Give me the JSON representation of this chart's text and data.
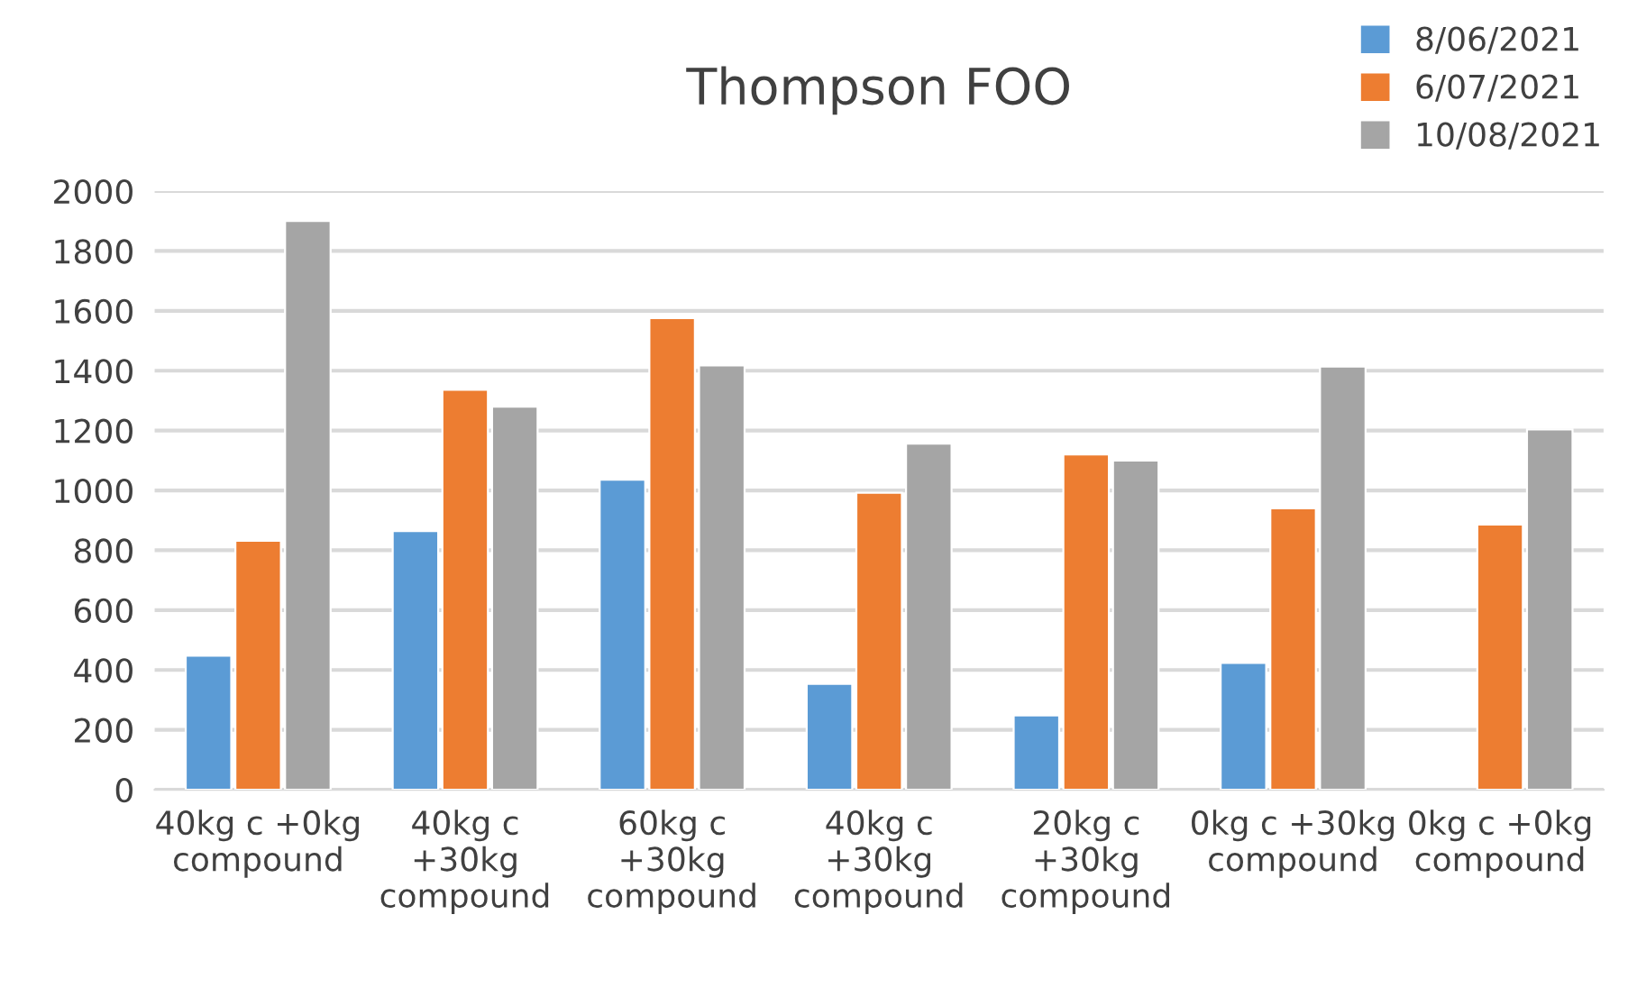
{
  "chart_data": {
    "type": "bar",
    "title": "Thompson FOO",
    "categories": [
      "40kg c +0kg\ncompound",
      "40kg c\n+30kg\ncompound",
      "60kg c\n+30kg\ncompound",
      "40kg c\n+30kg\ncompound",
      "20kg c\n+30kg\ncompound",
      "0kg c +30kg\ncompound",
      "0kg c +0kg\ncompound"
    ],
    "series": [
      {
        "name": "8/06/2021",
        "color": "#5b9bd5",
        "values": [
          448,
          864,
          1036,
          354,
          248,
          424,
          null
        ]
      },
      {
        "name": "6/07/2021",
        "color": "#ed7d31",
        "values": [
          832,
          1336,
          1576,
          992,
          1120,
          940,
          886
        ]
      },
      {
        "name": "10/08/2021",
        "color": "#a5a5a5",
        "values": [
          1900,
          1280,
          1418,
          1156,
          1100,
          1414,
          1204
        ]
      }
    ],
    "ylim": [
      0,
      2000
    ],
    "yticks": [
      0,
      200,
      400,
      600,
      800,
      1000,
      1200,
      1400,
      1600,
      1800,
      2000
    ],
    "grid": "y",
    "legend": "top right"
  }
}
